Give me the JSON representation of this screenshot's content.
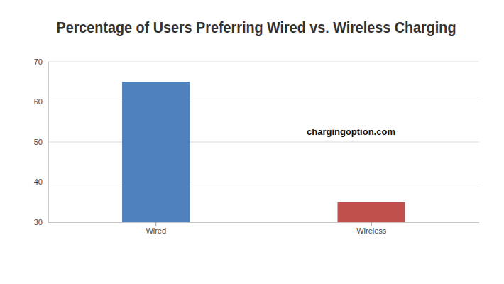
{
  "chart_data": {
    "type": "bar",
    "title": "Percentage of Users Preferring Wired vs. Wireless Charging",
    "categories": [
      "Wired",
      "Wireless"
    ],
    "values": [
      65,
      35
    ],
    "colors": [
      "#4f81bd",
      "#c0504d"
    ],
    "ylim": [
      30,
      70
    ],
    "yticks": [
      30,
      40,
      50,
      60,
      70
    ],
    "grid": true,
    "annotation": "chargingoption.com"
  }
}
